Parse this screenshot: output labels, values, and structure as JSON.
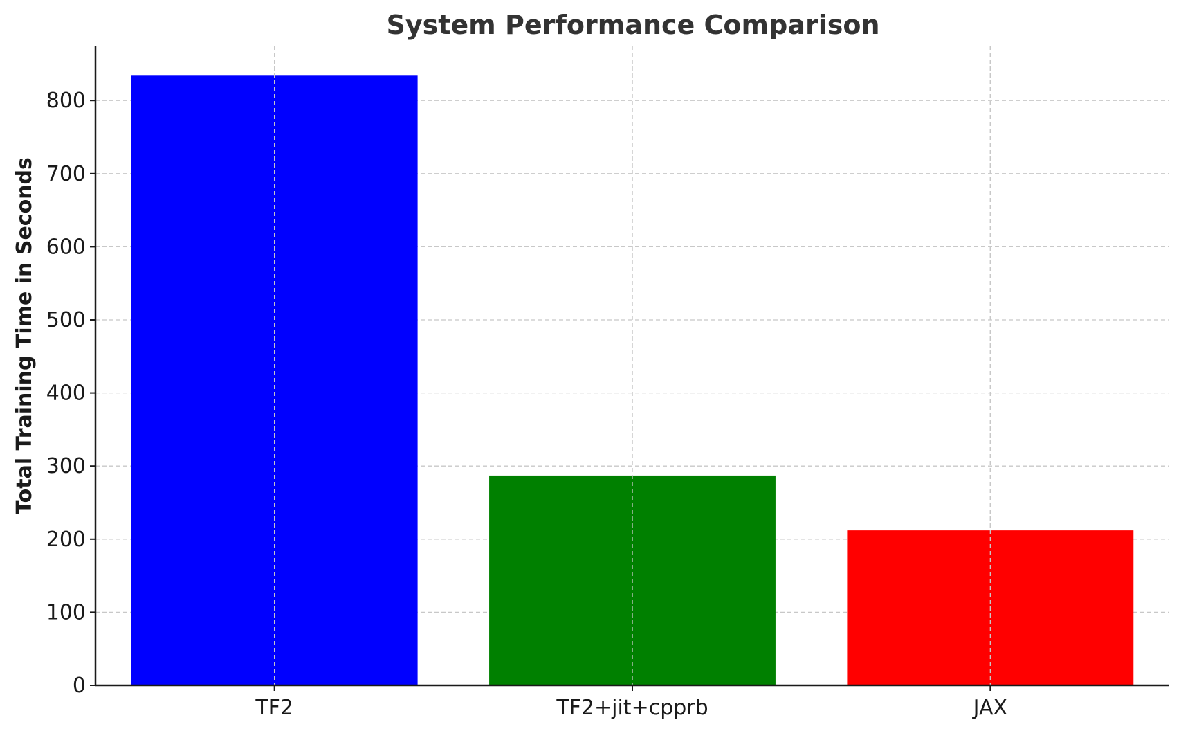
{
  "chart_data": {
    "type": "bar",
    "title": "System Performance Comparison",
    "xlabel": "",
    "ylabel": "Total Training Time in Seconds",
    "categories": [
      "TF2",
      "TF2+jit+cpprb",
      "JAX"
    ],
    "values": [
      834,
      287,
      212
    ],
    "colors": [
      "#0000ff",
      "#008000",
      "#ff0000"
    ],
    "ylim": [
      0,
      875
    ],
    "yticks": [
      0,
      100,
      200,
      300,
      400,
      500,
      600,
      700,
      800
    ],
    "grid": true,
    "legend": "none"
  }
}
